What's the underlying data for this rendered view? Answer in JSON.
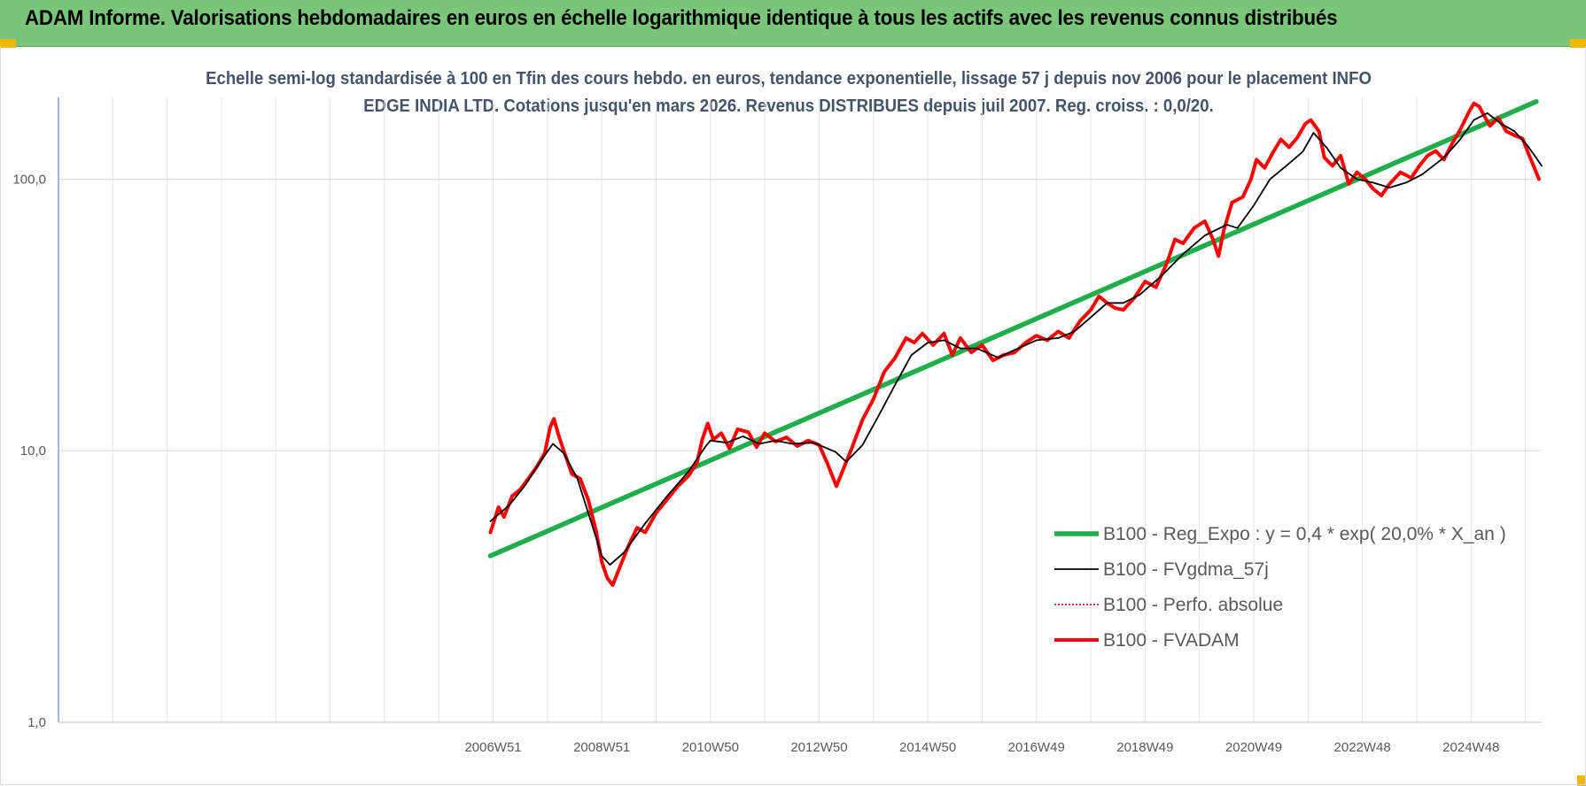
{
  "banner": {
    "title": "ADAM Informe. Valorisations hebdomadaires en euros en échelle logarithmique identique à tous les actifs avec les revenus connus distribués"
  },
  "chart_data": {
    "type": "line",
    "title": "Echelle semi-log standardisée à 100 en Tfin des cours hebdo. en euros, tendance exponentielle, lissage 57 j depuis nov 2006 pour le placement INFO EDGE INDIA LTD. Cotations jusqu'en mars 2026. Revenus DISTRIBUES depuis juil 2007. Reg. croiss. : 0,0/20.",
    "y_scale": "log",
    "ylim": [
      1,
      200
    ],
    "xlim": [
      1999.0,
      2026.3
    ],
    "y_ticks": [
      {
        "value": 100,
        "label": "100,0"
      },
      {
        "value": 10,
        "label": "10,0"
      },
      {
        "value": 1,
        "label": "1,0"
      }
    ],
    "x_ticks": [
      {
        "value": 2007.0,
        "label": "2006W51"
      },
      {
        "value": 2009.0,
        "label": "2008W51"
      },
      {
        "value": 2011.0,
        "label": "2010W50"
      },
      {
        "value": 2013.0,
        "label": "2012W50"
      },
      {
        "value": 2015.0,
        "label": "2014W50"
      },
      {
        "value": 2017.0,
        "label": "2016W49"
      },
      {
        "value": 2019.0,
        "label": "2018W49"
      },
      {
        "value": 2021.0,
        "label": "2020W49"
      },
      {
        "value": 2023.0,
        "label": "2022W48"
      },
      {
        "value": 2025.0,
        "label": "2024W48"
      }
    ],
    "grid": true,
    "legend_position": "bottom-right",
    "series": [
      {
        "name": "B100 - Reg_Expo : y = 0,4 * exp( 20,0% *  X_an )",
        "color": "#1fae4b",
        "style": "solid-thick",
        "points": [
          [
            2006.95,
            4.1
          ],
          [
            2026.2,
            193
          ]
        ]
      },
      {
        "name": "B100 - FVgdma_57j",
        "color": "#000000",
        "style": "solid-thin",
        "points": [
          [
            2006.95,
            5.5
          ],
          [
            2007.3,
            6.3
          ],
          [
            2007.6,
            7.5
          ],
          [
            2007.85,
            9.0
          ],
          [
            2008.1,
            10.6
          ],
          [
            2008.3,
            9.8
          ],
          [
            2008.55,
            7.9
          ],
          [
            2008.8,
            5.5
          ],
          [
            2009.0,
            4.1
          ],
          [
            2009.15,
            3.8
          ],
          [
            2009.4,
            4.2
          ],
          [
            2009.8,
            5.4
          ],
          [
            2010.2,
            6.8
          ],
          [
            2010.6,
            8.4
          ],
          [
            2010.9,
            10.3
          ],
          [
            2011.0,
            10.9
          ],
          [
            2011.3,
            10.7
          ],
          [
            2011.6,
            11.3
          ],
          [
            2011.9,
            10.6
          ],
          [
            2012.2,
            10.9
          ],
          [
            2012.5,
            10.6
          ],
          [
            2012.9,
            10.7
          ],
          [
            2013.3,
            9.9
          ],
          [
            2013.5,
            9.1
          ],
          [
            2013.8,
            10.5
          ],
          [
            2014.1,
            13.5
          ],
          [
            2014.4,
            17.5
          ],
          [
            2014.7,
            22.5
          ],
          [
            2015.0,
            25.0
          ],
          [
            2015.3,
            25.5
          ],
          [
            2015.6,
            23.8
          ],
          [
            2015.9,
            23.8
          ],
          [
            2016.3,
            22.0
          ],
          [
            2016.6,
            23.5
          ],
          [
            2017.0,
            25.5
          ],
          [
            2017.4,
            26.0
          ],
          [
            2017.7,
            27.5
          ],
          [
            2018.0,
            31.0
          ],
          [
            2018.3,
            35.0
          ],
          [
            2018.6,
            35.0
          ],
          [
            2018.9,
            37.5
          ],
          [
            2019.3,
            44.0
          ],
          [
            2019.7,
            53.0
          ],
          [
            2020.1,
            62.0
          ],
          [
            2020.5,
            68.0
          ],
          [
            2020.7,
            66.0
          ],
          [
            2021.0,
            80.0
          ],
          [
            2021.3,
            100.0
          ],
          [
            2021.6,
            112.0
          ],
          [
            2021.9,
            126.0
          ],
          [
            2022.1,
            148.0
          ],
          [
            2022.35,
            130.0
          ],
          [
            2022.6,
            110.0
          ],
          [
            2022.9,
            100.0
          ],
          [
            2023.2,
            97.0
          ],
          [
            2023.5,
            93.0
          ],
          [
            2023.8,
            97.0
          ],
          [
            2024.1,
            104.0
          ],
          [
            2024.5,
            120.0
          ],
          [
            2024.8,
            140.0
          ],
          [
            2025.05,
            165.0
          ],
          [
            2025.3,
            175.0
          ],
          [
            2025.55,
            160.0
          ],
          [
            2025.8,
            150.0
          ],
          [
            2026.05,
            132.0
          ],
          [
            2026.3,
            112.0
          ]
        ]
      },
      {
        "name": "B100 - Perfo. absolue",
        "color": "#c00000",
        "style": "dotted",
        "points": []
      },
      {
        "name": "B100 - FVADAM",
        "color": "#ff0000",
        "style": "solid-thick",
        "points": [
          [
            2006.95,
            5.0
          ],
          [
            2007.1,
            6.2
          ],
          [
            2007.2,
            5.7
          ],
          [
            2007.35,
            6.8
          ],
          [
            2007.5,
            7.2
          ],
          [
            2007.65,
            7.9
          ],
          [
            2007.8,
            8.7
          ],
          [
            2007.95,
            9.8
          ],
          [
            2008.05,
            12.2
          ],
          [
            2008.12,
            13.1
          ],
          [
            2008.2,
            11.5
          ],
          [
            2008.3,
            10.0
          ],
          [
            2008.45,
            8.2
          ],
          [
            2008.6,
            7.9
          ],
          [
            2008.75,
            6.6
          ],
          [
            2008.9,
            5.0
          ],
          [
            2009.0,
            3.9
          ],
          [
            2009.1,
            3.4
          ],
          [
            2009.2,
            3.2
          ],
          [
            2009.35,
            3.8
          ],
          [
            2009.5,
            4.5
          ],
          [
            2009.65,
            5.2
          ],
          [
            2009.8,
            5.0
          ],
          [
            2010.0,
            5.9
          ],
          [
            2010.2,
            6.6
          ],
          [
            2010.4,
            7.4
          ],
          [
            2010.6,
            8.1
          ],
          [
            2010.75,
            9.0
          ],
          [
            2010.85,
            11.0
          ],
          [
            2010.95,
            12.6
          ],
          [
            2011.05,
            11.0
          ],
          [
            2011.2,
            11.6
          ],
          [
            2011.35,
            10.2
          ],
          [
            2011.5,
            12.0
          ],
          [
            2011.7,
            11.7
          ],
          [
            2011.85,
            10.3
          ],
          [
            2012.0,
            11.6
          ],
          [
            2012.2,
            10.8
          ],
          [
            2012.4,
            11.2
          ],
          [
            2012.6,
            10.4
          ],
          [
            2012.8,
            10.9
          ],
          [
            2013.0,
            10.5
          ],
          [
            2013.15,
            9.0
          ],
          [
            2013.25,
            8.0
          ],
          [
            2013.32,
            7.4
          ],
          [
            2013.45,
            8.6
          ],
          [
            2013.6,
            10.2
          ],
          [
            2013.8,
            13.0
          ],
          [
            2014.0,
            15.5
          ],
          [
            2014.2,
            19.5
          ],
          [
            2014.4,
            22.0
          ],
          [
            2014.6,
            26.0
          ],
          [
            2014.75,
            25.0
          ],
          [
            2014.9,
            27.0
          ],
          [
            2015.1,
            24.5
          ],
          [
            2015.3,
            27.0
          ],
          [
            2015.45,
            22.5
          ],
          [
            2015.6,
            26.0
          ],
          [
            2015.8,
            23.0
          ],
          [
            2016.0,
            24.5
          ],
          [
            2016.2,
            21.5
          ],
          [
            2016.4,
            22.5
          ],
          [
            2016.6,
            23.0
          ],
          [
            2016.8,
            25.0
          ],
          [
            2017.0,
            26.5
          ],
          [
            2017.2,
            25.5
          ],
          [
            2017.4,
            27.5
          ],
          [
            2017.6,
            26.0
          ],
          [
            2017.8,
            30.0
          ],
          [
            2018.0,
            33.0
          ],
          [
            2018.15,
            37.0
          ],
          [
            2018.3,
            35.0
          ],
          [
            2018.45,
            33.5
          ],
          [
            2018.6,
            33.0
          ],
          [
            2018.8,
            36.5
          ],
          [
            2019.0,
            42.0
          ],
          [
            2019.2,
            40.0
          ],
          [
            2019.4,
            49.0
          ],
          [
            2019.55,
            60.0
          ],
          [
            2019.7,
            58.0
          ],
          [
            2019.9,
            66.0
          ],
          [
            2020.1,
            70.0
          ],
          [
            2020.25,
            60.0
          ],
          [
            2020.35,
            52.0
          ],
          [
            2020.45,
            65.0
          ],
          [
            2020.6,
            82.0
          ],
          [
            2020.8,
            86.0
          ],
          [
            2020.95,
            100.0
          ],
          [
            2021.05,
            118.0
          ],
          [
            2021.2,
            110.0
          ],
          [
            2021.35,
            125.0
          ],
          [
            2021.5,
            140.0
          ],
          [
            2021.65,
            131.0
          ],
          [
            2021.8,
            142.0
          ],
          [
            2021.95,
            160.0
          ],
          [
            2022.05,
            165.0
          ],
          [
            2022.2,
            150.0
          ],
          [
            2022.3,
            120.0
          ],
          [
            2022.45,
            112.0
          ],
          [
            2022.6,
            122.0
          ],
          [
            2022.75,
            96.0
          ],
          [
            2022.9,
            106.0
          ],
          [
            2023.05,
            100.0
          ],
          [
            2023.2,
            92.0
          ],
          [
            2023.35,
            87.0
          ],
          [
            2023.5,
            96.0
          ],
          [
            2023.7,
            106.0
          ],
          [
            2023.9,
            101.0
          ],
          [
            2024.05,
            112.0
          ],
          [
            2024.2,
            122.0
          ],
          [
            2024.35,
            127.0
          ],
          [
            2024.5,
            118.0
          ],
          [
            2024.65,
            135.0
          ],
          [
            2024.8,
            152.0
          ],
          [
            2024.95,
            175.0
          ],
          [
            2025.05,
            190.0
          ],
          [
            2025.15,
            185.0
          ],
          [
            2025.25,
            170.0
          ],
          [
            2025.35,
            157.0
          ],
          [
            2025.5,
            168.0
          ],
          [
            2025.65,
            150.0
          ],
          [
            2025.8,
            145.0
          ],
          [
            2025.95,
            141.0
          ],
          [
            2026.05,
            125.0
          ],
          [
            2026.15,
            112.0
          ],
          [
            2026.25,
            100.0
          ]
        ]
      }
    ]
  }
}
